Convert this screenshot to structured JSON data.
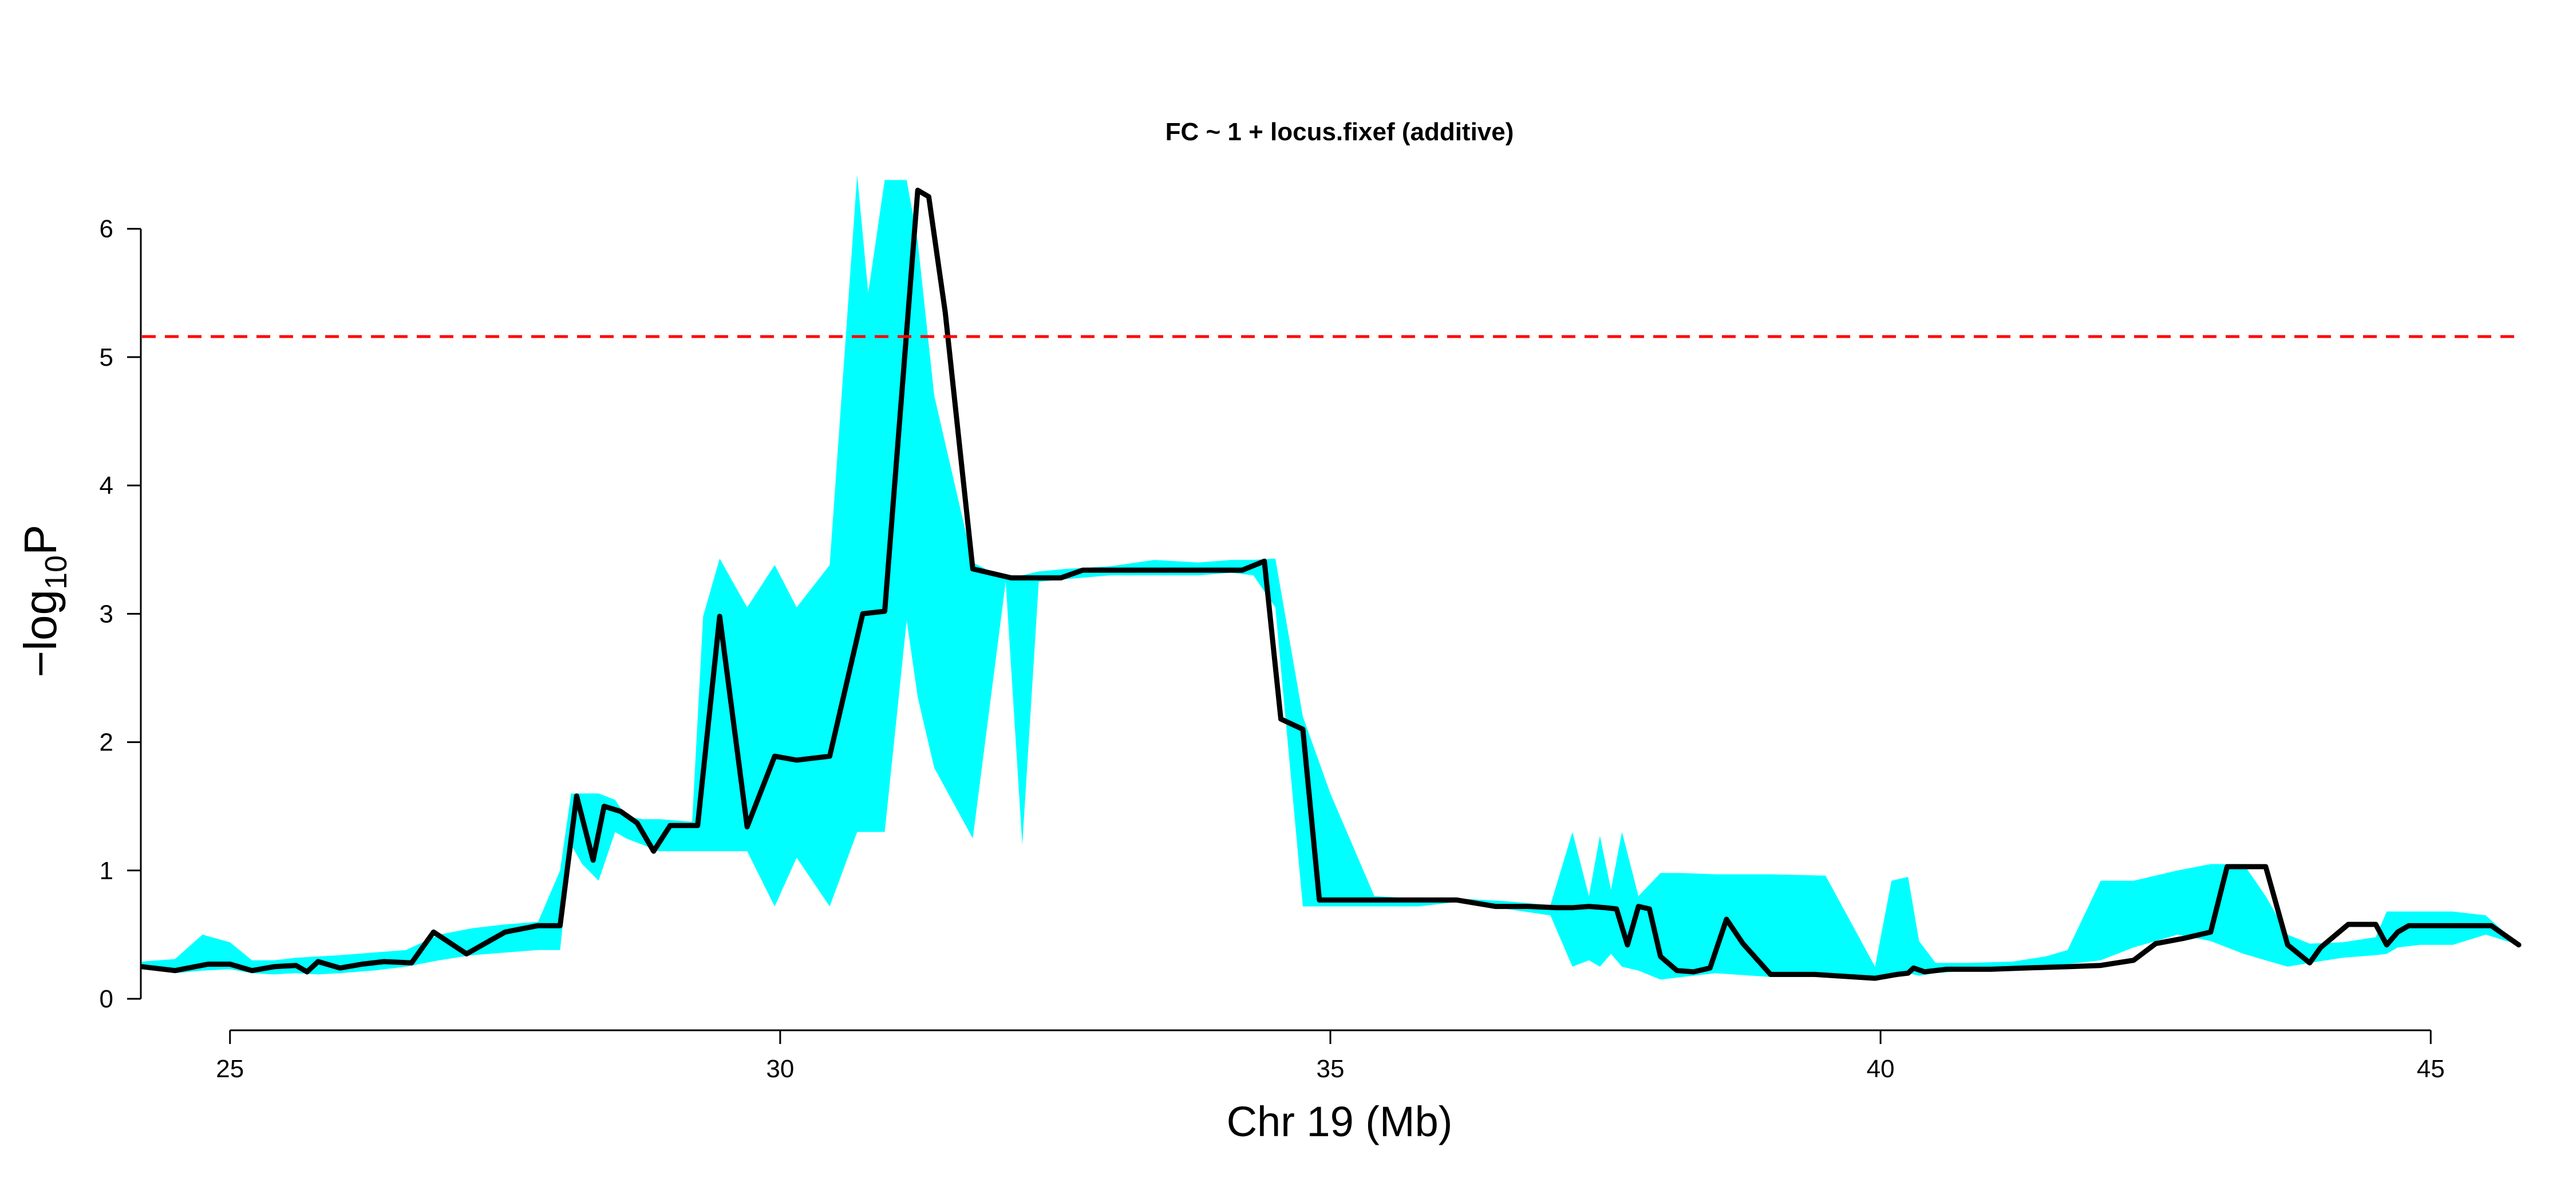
{
  "chart_data": {
    "type": "area",
    "title": "FC ~ 1 + locus.fixef (additive)",
    "xlabel": "Chr 19 (Mb)",
    "ylabel": {
      "prefix": "−log",
      "sub": "10",
      "suffix": "P"
    },
    "xlim": [
      24.2,
      45.8
    ],
    "ylim": [
      0,
      6.4
    ],
    "xticks": [
      25,
      30,
      35,
      40,
      45
    ],
    "yticks": [
      0,
      1,
      2,
      3,
      4,
      5,
      6
    ],
    "threshold": {
      "y": 5.16,
      "color": "#ff0000",
      "style": "dashed"
    },
    "colors": {
      "band": "#00ffff",
      "line": "#000000",
      "threshold": "#ff0000"
    },
    "series": [
      {
        "kind": "band",
        "x": [
          24.2,
          24.5,
          24.75,
          25.0,
          25.2,
          25.4,
          25.6,
          25.8,
          26.0,
          26.3,
          26.6,
          26.9,
          27.2,
          27.5,
          27.8,
          28.0,
          28.1,
          28.2,
          28.35,
          28.5,
          28.6,
          28.75,
          28.9,
          29.2,
          29.3,
          29.45,
          29.7,
          29.95,
          30.15,
          30.45,
          30.7,
          30.8,
          30.95,
          31.15,
          31.25,
          31.4,
          31.75,
          32.05,
          32.2,
          32.35,
          32.6,
          33.0,
          33.4,
          33.8,
          34.1,
          34.3,
          34.5,
          34.75,
          35.0,
          35.4,
          35.8,
          36.2,
          36.6,
          37.0,
          37.2,
          37.35,
          37.45,
          37.55,
          37.65,
          37.8,
          38.0,
          38.2,
          38.5,
          39.0,
          39.5,
          39.95,
          40.1,
          40.25,
          40.35,
          40.5,
          40.8,
          41.2,
          41.5,
          41.7,
          42.0,
          42.3,
          42.7,
          43.0,
          43.3,
          43.5,
          43.7,
          43.9,
          44.2,
          44.5,
          44.6,
          44.7,
          44.9,
          45.2,
          45.5,
          45.8
        ],
        "upper": [
          0.29,
          0.31,
          0.5,
          0.44,
          0.3,
          0.3,
          0.32,
          0.33,
          0.34,
          0.36,
          0.38,
          0.5,
          0.55,
          0.58,
          0.6,
          1.0,
          1.6,
          1.6,
          1.6,
          1.55,
          1.42,
          1.4,
          1.4,
          1.38,
          2.98,
          3.43,
          3.05,
          3.38,
          3.05,
          3.38,
          6.42,
          5.5,
          6.38,
          6.38,
          5.9,
          4.7,
          3.4,
          3.27,
          3.3,
          3.33,
          3.35,
          3.37,
          3.42,
          3.4,
          3.42,
          3.42,
          3.43,
          2.2,
          1.6,
          0.8,
          0.78,
          0.78,
          0.76,
          0.73,
          1.3,
          0.8,
          1.27,
          0.85,
          1.3,
          0.8,
          0.98,
          0.98,
          0.97,
          0.97,
          0.96,
          0.25,
          0.92,
          0.95,
          0.45,
          0.28,
          0.28,
          0.29,
          0.33,
          0.38,
          0.92,
          0.92,
          1.0,
          1.05,
          1.05,
          0.8,
          0.5,
          0.43,
          0.44,
          0.48,
          0.68,
          0.68,
          0.68,
          0.68,
          0.65,
          0.42
        ],
        "lower": [
          0.24,
          0.2,
          0.22,
          0.23,
          0.2,
          0.19,
          0.2,
          0.19,
          0.2,
          0.22,
          0.25,
          0.3,
          0.34,
          0.36,
          0.38,
          0.38,
          1.2,
          1.05,
          0.92,
          1.3,
          1.25,
          1.2,
          1.15,
          1.15,
          1.15,
          1.15,
          1.15,
          0.72,
          1.1,
          0.72,
          1.3,
          1.3,
          1.3,
          2.95,
          2.35,
          1.8,
          1.25,
          3.25,
          1.2,
          3.25,
          3.27,
          3.3,
          3.3,
          3.3,
          3.32,
          3.3,
          3.05,
          0.72,
          0.72,
          0.72,
          0.72,
          0.76,
          0.7,
          0.65,
          0.25,
          0.3,
          0.25,
          0.35,
          0.25,
          0.22,
          0.15,
          0.17,
          0.2,
          0.17,
          0.17,
          0.15,
          0.18,
          0.2,
          0.18,
          0.2,
          0.22,
          0.24,
          0.26,
          0.27,
          0.3,
          0.4,
          0.5,
          0.45,
          0.35,
          0.3,
          0.25,
          0.28,
          0.32,
          0.34,
          0.35,
          0.4,
          0.42,
          0.42,
          0.5,
          0.42
        ]
      },
      {
        "kind": "line",
        "x": [
          24.2,
          24.5,
          24.8,
          25.0,
          25.2,
          25.4,
          25.6,
          25.7,
          25.8,
          26.0,
          26.2,
          26.4,
          26.65,
          26.85,
          27.15,
          27.5,
          27.8,
          28.0,
          28.15,
          28.3,
          28.4,
          28.55,
          28.7,
          28.85,
          29.0,
          29.25,
          29.45,
          29.7,
          29.95,
          30.15,
          30.45,
          30.75,
          30.95,
          31.25,
          31.35,
          31.5,
          31.75,
          32.1,
          32.3,
          32.55,
          32.75,
          33.0,
          33.3,
          33.6,
          33.9,
          34.2,
          34.4,
          34.55,
          34.75,
          34.9,
          35.2,
          35.5,
          35.8,
          36.15,
          36.5,
          36.8,
          37.05,
          37.2,
          37.35,
          37.5,
          37.6,
          37.7,
          37.8,
          37.9,
          38.0,
          38.15,
          38.3,
          38.45,
          38.6,
          38.75,
          39.0,
          39.4,
          39.95,
          40.15,
          40.25,
          40.3,
          40.4,
          40.6,
          41.0,
          41.3,
          41.7,
          42.0,
          42.3,
          42.5,
          42.75,
          43.0,
          43.15,
          43.35,
          43.5,
          43.7,
          43.9,
          44.0,
          44.25,
          44.5,
          44.6,
          44.7,
          44.8,
          45.0,
          45.3,
          45.55,
          45.8
        ],
        "y": [
          0.25,
          0.22,
          0.27,
          0.27,
          0.22,
          0.25,
          0.26,
          0.21,
          0.29,
          0.24,
          0.27,
          0.29,
          0.28,
          0.52,
          0.35,
          0.52,
          0.57,
          0.57,
          1.58,
          1.08,
          1.5,
          1.46,
          1.37,
          1.15,
          1.35,
          1.35,
          2.98,
          1.34,
          1.89,
          1.86,
          1.89,
          3.0,
          3.02,
          6.3,
          6.25,
          5.35,
          3.35,
          3.28,
          3.28,
          3.28,
          3.34,
          3.34,
          3.34,
          3.34,
          3.34,
          3.34,
          3.41,
          2.18,
          2.1,
          0.77,
          0.77,
          0.77,
          0.77,
          0.77,
          0.72,
          0.72,
          0.71,
          0.71,
          0.72,
          0.71,
          0.7,
          0.42,
          0.72,
          0.7,
          0.33,
          0.22,
          0.21,
          0.24,
          0.62,
          0.43,
          0.19,
          0.19,
          0.16,
          0.19,
          0.2,
          0.24,
          0.21,
          0.23,
          0.23,
          0.24,
          0.25,
          0.26,
          0.3,
          0.43,
          0.47,
          0.52,
          1.03,
          1.03,
          1.03,
          0.42,
          0.28,
          0.4,
          0.58,
          0.58,
          0.42,
          0.52,
          0.57,
          0.57,
          0.57,
          0.57,
          0.42
        ]
      }
    ]
  }
}
